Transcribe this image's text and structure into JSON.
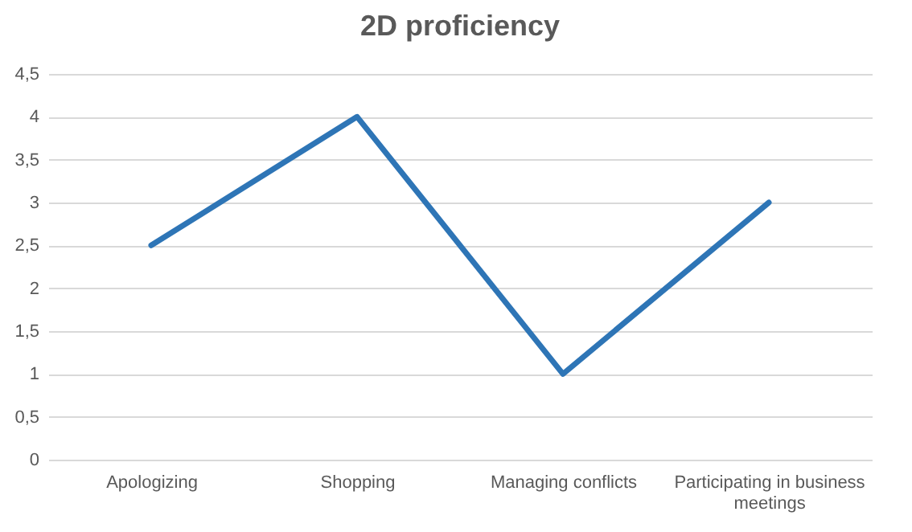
{
  "chart_data": {
    "type": "line",
    "title": "2D proficiency",
    "categories": [
      "Apologizing",
      "Shopping",
      "Managing conflicts",
      "Participating in business meetings"
    ],
    "series": [
      {
        "color": "#2e75b6",
        "values": [
          2.5,
          4,
          1,
          3
        ]
      }
    ],
    "ylim": [
      0,
      4.5
    ],
    "yticks": [
      0,
      {
        "value": 0.5,
        "label": "0,5"
      },
      1,
      {
        "value": 1.5,
        "label": "1,5"
      },
      2,
      {
        "value": 2.5,
        "label": "2,5"
      },
      3,
      {
        "value": 3.5,
        "label": "3,5"
      },
      4,
      {
        "value": 4.5,
        "label": "4,5"
      }
    ],
    "grid": "y",
    "marker": "none",
    "line_style": "solid"
  }
}
